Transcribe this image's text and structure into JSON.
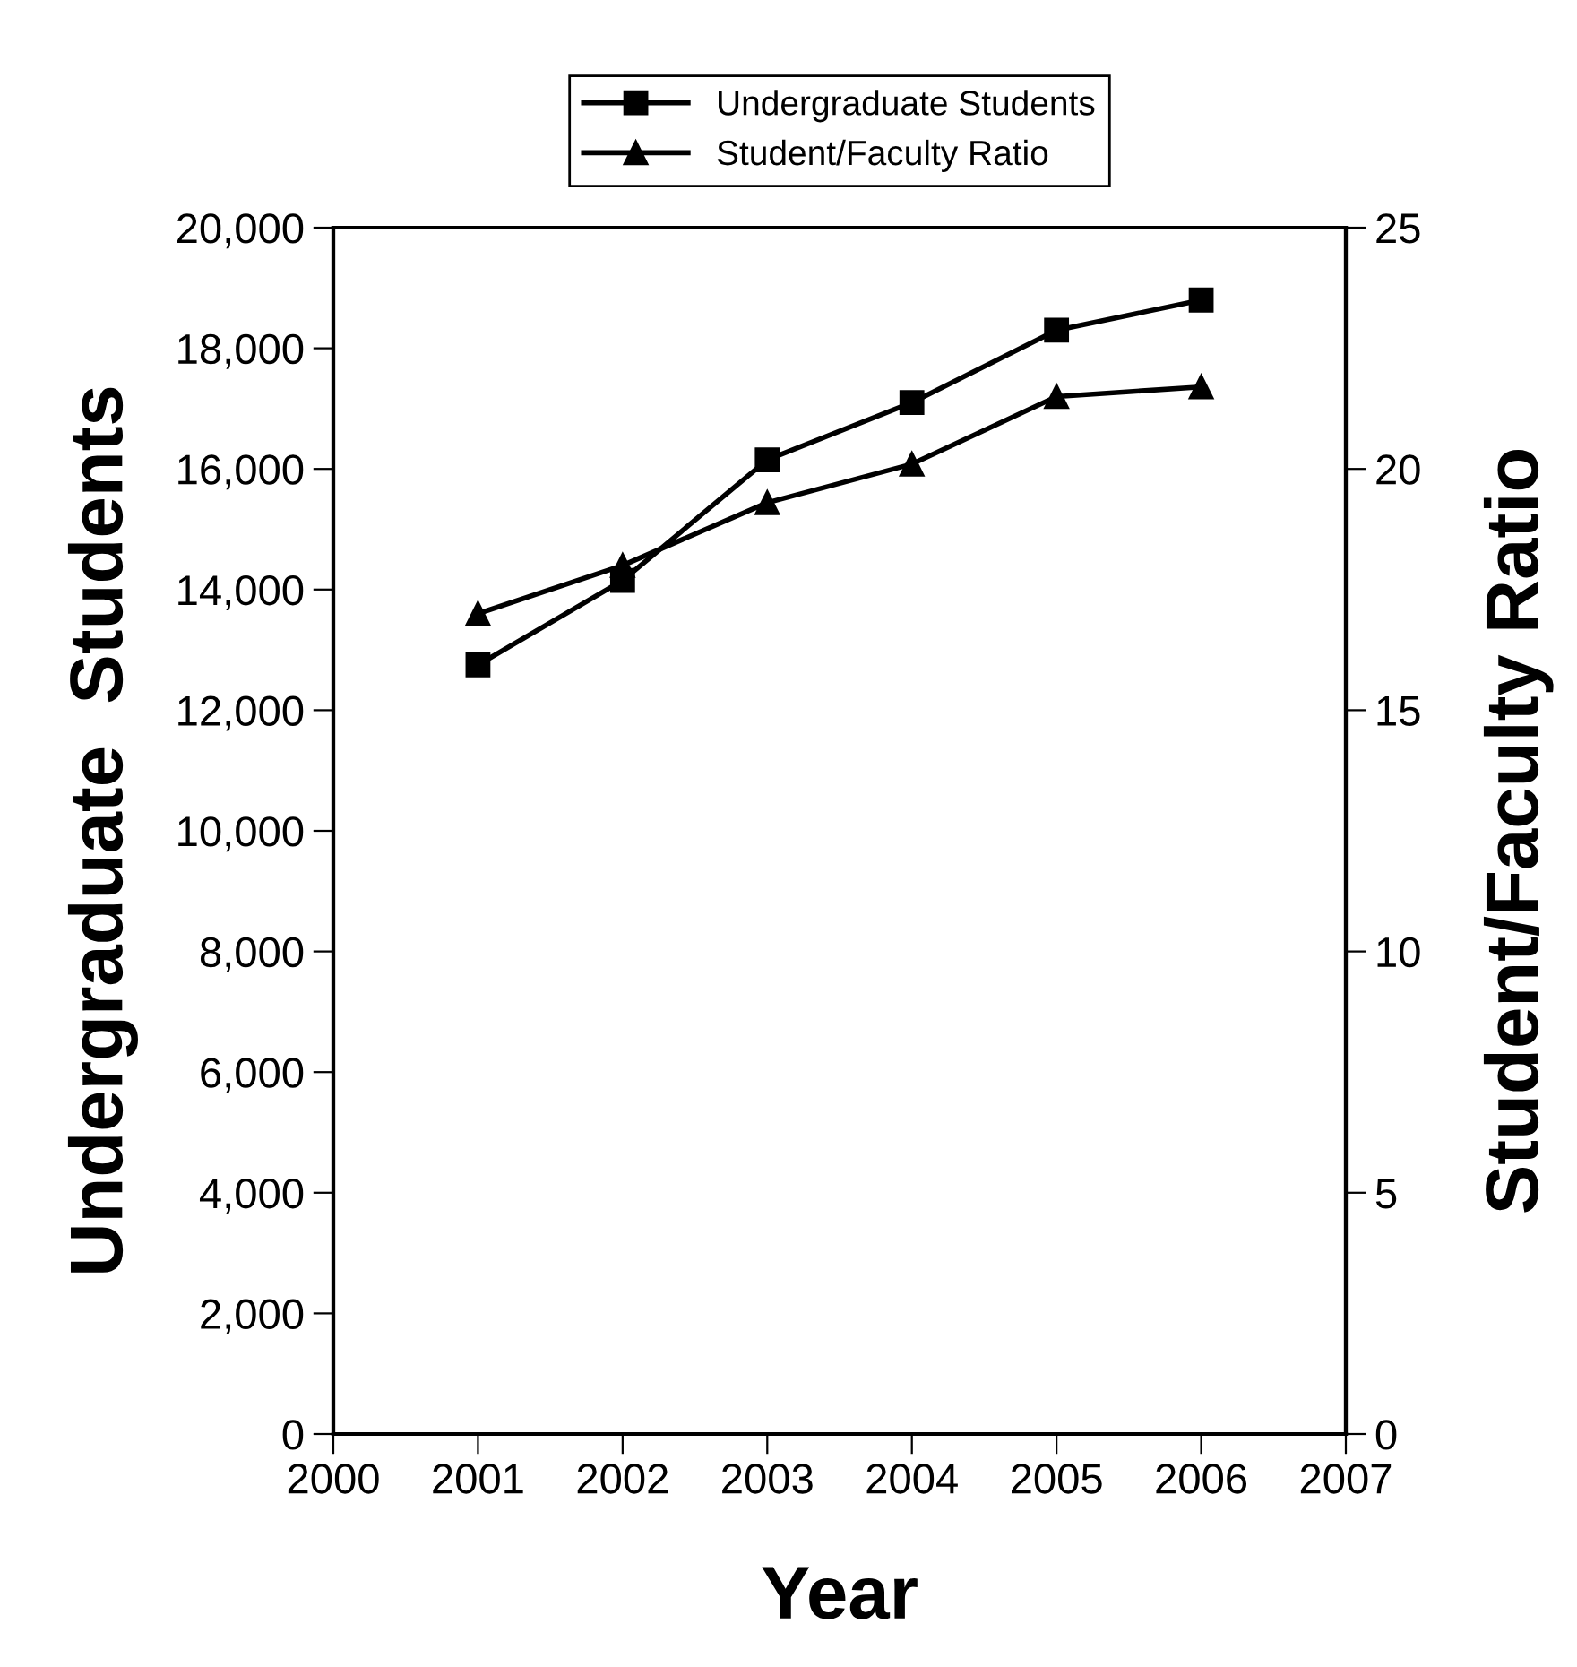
{
  "chart_data": {
    "type": "line",
    "xlabel": "Year",
    "ylabel": "Undergraduate  Students",
    "y2label": "Student/Faculty Ratio",
    "x": [
      2001,
      2002,
      2003,
      2004,
      2005,
      2006
    ],
    "series": [
      {
        "name": "Undergraduate Students",
        "color": "#000000",
        "marker": "square",
        "values": [
          12750,
          14150,
          16150,
          17100,
          18300,
          18800
        ]
      },
      {
        "name": "Student/Faculty Ratio",
        "color": "#000000",
        "marker": "triangle",
        "axis": "y2",
        "values": [
          17.0,
          18.0,
          19.3,
          20.1,
          21.5,
          21.7
        ]
      }
    ],
    "xlim": [
      2000,
      2007
    ],
    "xticks": [
      2000,
      2001,
      2002,
      2003,
      2004,
      2005,
      2006,
      2007
    ],
    "ylim": [
      0,
      20000
    ],
    "yticks": [
      {
        "value": 0,
        "label": "0"
      },
      {
        "value": 2000,
        "label": "2,000"
      },
      {
        "value": 4000,
        "label": "4,000"
      },
      {
        "value": 6000,
        "label": "6,000"
      },
      {
        "value": 8000,
        "label": "8,000"
      },
      {
        "value": 10000,
        "label": "10,000"
      },
      {
        "value": 12000,
        "label": "12,000"
      },
      {
        "value": 14000,
        "label": "14,000"
      },
      {
        "value": 16000,
        "label": "16,000"
      },
      {
        "value": 18000,
        "label": "18,000"
      },
      {
        "value": 20000,
        "label": "20,000"
      }
    ],
    "y2lim": [
      0,
      25
    ],
    "y2ticks": [
      0,
      5,
      10,
      15,
      20,
      25
    ],
    "grid": false,
    "legend": "top",
    "line_style": "solid"
  }
}
